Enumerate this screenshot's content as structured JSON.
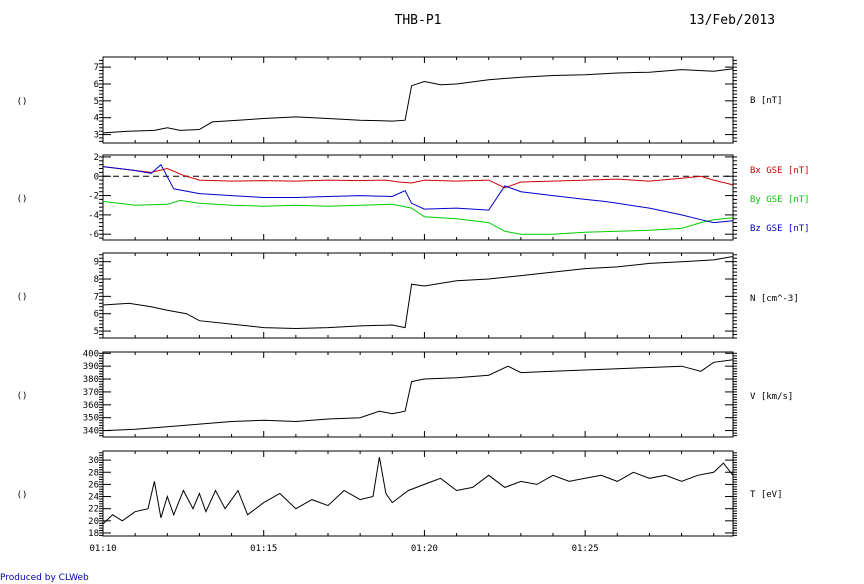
{
  "header": {
    "title": "THB-P1",
    "date": "13/Feb/2013"
  },
  "footer": {
    "credit": "Produced by CLWeb"
  },
  "x_ticks": [
    "01:10",
    "01:15",
    "01:20",
    "01:25"
  ],
  "colors": {
    "axes": "#000000",
    "bx": "#d00000",
    "by": "#00cc00",
    "bz": "#0000cc",
    "credit": "#0000aa"
  },
  "chart_data": [
    {
      "type": "line",
      "ylabel_left": "()",
      "ylabel_right": "B [nT]",
      "yticks": [
        "3",
        "4",
        "5",
        "6",
        "7"
      ],
      "ylim": [
        2.5,
        7.6
      ],
      "xlim": [
        0,
        19.6
      ],
      "series": [
        {
          "color": "#000000",
          "x": [
            0,
            0.8,
            1.6,
            2.0,
            2.4,
            3.0,
            3.4,
            4.2,
            5.0,
            6.0,
            7.0,
            8.0,
            9.0,
            9.4,
            9.6,
            10.0,
            10.5,
            11.0,
            12.0,
            13.0,
            14.0,
            15.0,
            16.0,
            17.0,
            18.0,
            19.0,
            19.6
          ],
          "y": [
            3.1,
            3.2,
            3.25,
            3.4,
            3.25,
            3.3,
            3.75,
            3.85,
            3.95,
            4.05,
            3.95,
            3.85,
            3.8,
            3.85,
            5.9,
            6.15,
            5.95,
            6.0,
            6.25,
            6.4,
            6.5,
            6.55,
            6.65,
            6.7,
            6.85,
            6.75,
            6.9
          ]
        }
      ]
    },
    {
      "type": "line",
      "ylabel_left": "()",
      "yticks": [
        "-6",
        "-4",
        "-2",
        "0",
        "2"
      ],
      "ylim": [
        -6.6,
        2.2
      ],
      "xlim": [
        0,
        19.6
      ],
      "reference_line": 0,
      "series": [
        {
          "name": "Bx GSE [nT]",
          "color": "#d00000",
          "x": [
            0,
            1.0,
            1.5,
            2.0,
            2.5,
            3.0,
            4.0,
            5.0,
            6.0,
            7.0,
            8.0,
            8.8,
            9.2,
            9.6,
            10.0,
            11.0,
            12.0,
            12.5,
            13.0,
            14.0,
            15.0,
            16.0,
            17.0,
            18.0,
            18.6,
            19.0,
            19.6
          ],
          "y": [
            1.0,
            0.6,
            0.4,
            0.8,
            0.1,
            -0.4,
            -0.5,
            -0.45,
            -0.5,
            -0.4,
            -0.45,
            -0.4,
            -0.6,
            -0.7,
            -0.4,
            -0.5,
            -0.4,
            -1.2,
            -0.6,
            -0.5,
            -0.4,
            -0.3,
            -0.5,
            -0.2,
            0.0,
            -0.4,
            -0.9
          ]
        },
        {
          "name": "By GSE [nT]",
          "color": "#00cc00",
          "x": [
            0,
            1.0,
            2.0,
            2.4,
            3.0,
            4.0,
            5.0,
            6.0,
            7.0,
            8.0,
            9.0,
            9.6,
            10.0,
            11.0,
            12.0,
            12.5,
            13.0,
            14.0,
            15.0,
            16.0,
            17.0,
            18.0,
            18.6,
            19.0,
            19.6
          ],
          "y": [
            -2.6,
            -3.0,
            -2.9,
            -2.5,
            -2.8,
            -3.0,
            -3.1,
            -3.0,
            -3.1,
            -3.0,
            -2.9,
            -3.3,
            -4.2,
            -4.4,
            -4.8,
            -5.7,
            -6.0,
            -6.0,
            -5.8,
            -5.7,
            -5.6,
            -5.4,
            -4.8,
            -4.5,
            -4.3
          ]
        },
        {
          "name": "Bz GSE [nT]",
          "color": "#0000cc",
          "x": [
            0,
            1.0,
            1.5,
            1.8,
            2.2,
            3.0,
            4.0,
            5.0,
            6.0,
            7.0,
            8.0,
            9.0,
            9.4,
            9.6,
            10.0,
            11.0,
            12.0,
            12.5,
            13.0,
            14.0,
            15.0,
            15.6,
            16.0,
            17.0,
            18.0,
            18.6,
            19.0,
            19.6
          ],
          "y": [
            1.0,
            0.6,
            0.3,
            1.2,
            -1.3,
            -1.8,
            -2.0,
            -2.2,
            -2.2,
            -2.1,
            -2.0,
            -2.1,
            -1.5,
            -2.8,
            -3.4,
            -3.3,
            -3.5,
            -1.0,
            -1.6,
            -2.0,
            -2.4,
            -2.6,
            -2.8,
            -3.3,
            -4.0,
            -4.5,
            -4.8,
            -4.6
          ]
        }
      ]
    },
    {
      "type": "line",
      "ylabel_left": "()",
      "ylabel_right": "N [cm^-3]",
      "yticks": [
        "5",
        "6",
        "7",
        "8",
        "9"
      ],
      "ylim": [
        4.6,
        9.5
      ],
      "xlim": [
        0,
        19.6
      ],
      "series": [
        {
          "color": "#000000",
          "x": [
            0,
            0.8,
            1.5,
            2.0,
            2.6,
            3.0,
            4.0,
            5.0,
            6.0,
            7.0,
            8.0,
            9.0,
            9.4,
            9.6,
            10.0,
            11.0,
            12.0,
            13.0,
            14.0,
            15.0,
            16.0,
            17.0,
            18.0,
            19.0,
            19.6
          ],
          "y": [
            6.5,
            6.6,
            6.4,
            6.2,
            6.0,
            5.6,
            5.4,
            5.2,
            5.15,
            5.2,
            5.3,
            5.35,
            5.2,
            7.7,
            7.6,
            7.9,
            8.0,
            8.2,
            8.4,
            8.6,
            8.7,
            8.9,
            9.0,
            9.1,
            9.3
          ]
        }
      ]
    },
    {
      "type": "line",
      "ylabel_left": "()",
      "ylabel_right": "V [km/s]",
      "yticks": [
        "340",
        "350",
        "360",
        "370",
        "380",
        "390",
        "400"
      ],
      "ylim": [
        335,
        401
      ],
      "xlim": [
        0,
        19.6
      ],
      "series": [
        {
          "color": "#000000",
          "x": [
            0,
            1.0,
            2.0,
            3.0,
            4.0,
            5.0,
            6.0,
            7.0,
            8.0,
            8.6,
            9.0,
            9.4,
            9.6,
            10.0,
            11.0,
            12.0,
            12.6,
            13.0,
            14.0,
            15.0,
            16.0,
            17.0,
            18.0,
            18.6,
            19.0,
            19.6
          ],
          "y": [
            340,
            341,
            343,
            345,
            347,
            348,
            347,
            349,
            350,
            355,
            353,
            355,
            378,
            380,
            381,
            383,
            390,
            385,
            386,
            387,
            388,
            389,
            390,
            386,
            393,
            395
          ]
        }
      ]
    },
    {
      "type": "line",
      "ylabel_left": "()",
      "ylabel_right": "T [eV]",
      "yticks": [
        "18",
        "20",
        "22",
        "24",
        "26",
        "28",
        "30"
      ],
      "ylim": [
        17.5,
        31.5
      ],
      "xlim": [
        0,
        19.6
      ],
      "series": [
        {
          "color": "#000000",
          "x": [
            0,
            0.3,
            0.6,
            1.0,
            1.4,
            1.6,
            1.8,
            2.0,
            2.2,
            2.5,
            2.8,
            3.0,
            3.2,
            3.5,
            3.8,
            4.0,
            4.2,
            4.5,
            5.0,
            5.5,
            6.0,
            6.5,
            7.0,
            7.5,
            8.0,
            8.4,
            8.6,
            8.8,
            9.0,
            9.5,
            10.0,
            10.5,
            11.0,
            11.5,
            12.0,
            12.5,
            13.0,
            13.5,
            14.0,
            14.5,
            15.0,
            15.5,
            16.0,
            16.5,
            17.0,
            17.5,
            18.0,
            18.5,
            19.0,
            19.3,
            19.6
          ],
          "y": [
            19.5,
            21,
            20,
            21.5,
            22,
            26.5,
            20.5,
            24,
            21,
            25,
            22,
            24.5,
            21.5,
            25,
            22,
            23.5,
            25,
            21,
            23,
            24.5,
            22,
            23.5,
            22.5,
            25,
            23.5,
            24,
            30.5,
            24.5,
            23,
            25,
            26,
            27,
            25,
            25.5,
            27.5,
            25.5,
            26.5,
            26,
            27.5,
            26.5,
            27,
            27.5,
            26.5,
            28,
            27,
            27.5,
            26.5,
            27.5,
            28,
            29.5,
            27.5
          ]
        }
      ]
    }
  ]
}
